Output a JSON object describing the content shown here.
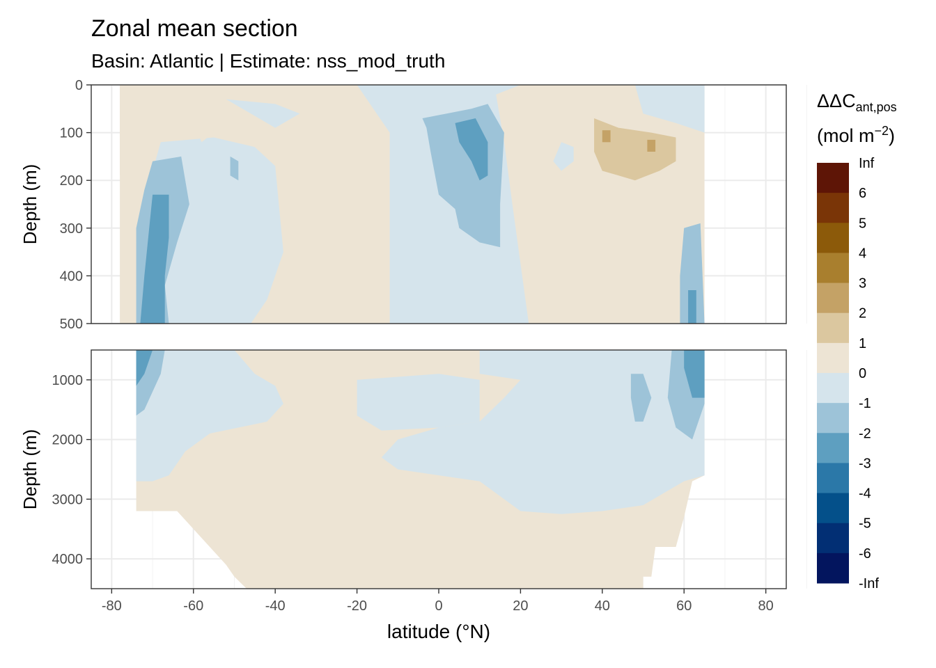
{
  "chart_data": {
    "type": "heatmap",
    "title": "Zonal mean section",
    "subtitle": "Basin: Atlantic | Estimate: nss_mod_truth",
    "xlabel": "latitude (°N)",
    "ylabel": "Depth (m)",
    "xlim": [
      -85,
      85
    ],
    "x_ticks": [
      -80,
      -60,
      -40,
      -20,
      0,
      20,
      40,
      60,
      80
    ],
    "x_tick_labels": [
      "-80",
      "-60",
      "-40",
      "-20",
      "0",
      "20",
      "40",
      "60",
      "80"
    ],
    "panels": [
      {
        "name": "upper",
        "ylim": [
          0,
          500
        ],
        "y_ticks": [
          0,
          100,
          200,
          300,
          400,
          500
        ],
        "y_tick_labels": [
          "0",
          "100",
          "200",
          "300",
          "400",
          "500"
        ],
        "ylabel": "Depth (m)"
      },
      {
        "name": "lower",
        "ylim": [
          500,
          4500
        ],
        "y_ticks": [
          1000,
          2000,
          3000,
          4000
        ],
        "y_tick_labels": [
          "1000",
          "2000",
          "3000",
          "4000"
        ],
        "ylabel": "Depth (m)"
      }
    ],
    "legend": {
      "title_main": "ΔΔC",
      "title_sub": "ant,pos",
      "unit_main": "(mol m",
      "unit_sup": "−2",
      "unit_close": ")",
      "breaks": [
        "Inf",
        "6",
        "5",
        "4",
        "3",
        "2",
        "1",
        "0",
        "-1",
        "-2",
        "-3",
        "-4",
        "-5",
        "-6",
        "-Inf"
      ],
      "colors": [
        "#5e1506",
        "#7a3507",
        "#8c5a0a",
        "#a97f2e",
        "#c4a266",
        "#dbc79f",
        "#ede4d4",
        "#d5e4ec",
        "#9dc3d8",
        "#5e9fc0",
        "#2b78a8",
        "#04508a",
        "#022f74",
        "#03155e"
      ],
      "position": "right"
    },
    "regions": [
      {
        "panel": "upper",
        "class": "1",
        "label": "0 to 1",
        "poly": [
          [
            -78,
            0
          ],
          [
            65,
            0
          ],
          [
            65,
            500
          ],
          [
            -78,
            500
          ]
        ]
      },
      {
        "panel": "upper",
        "class": "-1",
        "label": "-1 to 0",
        "poly": [
          [
            -46,
            0
          ],
          [
            -20,
            0
          ],
          [
            -12,
            100
          ],
          [
            -12,
            500
          ],
          [
            22,
            500
          ],
          [
            18,
            250
          ],
          [
            16,
            120
          ],
          [
            14,
            20
          ],
          [
            20,
            0
          ],
          [
            -46,
            0
          ]
        ]
      },
      {
        "panel": "upper",
        "class": "-1",
        "label": "-1 to 0",
        "poly": [
          [
            -68,
            120
          ],
          [
            -55,
            110
          ],
          [
            -45,
            130
          ],
          [
            -40,
            170
          ],
          [
            -38,
            350
          ],
          [
            -42,
            450
          ],
          [
            -46,
            500
          ],
          [
            -72,
            500
          ],
          [
            -74,
            300
          ]
        ]
      },
      {
        "panel": "upper",
        "class": "-1",
        "label": "-1 to 0",
        "poly": [
          [
            -52,
            30
          ],
          [
            -40,
            40
          ],
          [
            -34,
            60
          ],
          [
            -40,
            90
          ]
        ]
      },
      {
        "panel": "upper",
        "class": "-1",
        "label": "-1 to 0",
        "poly": [
          [
            -16,
            0
          ],
          [
            8,
            0
          ],
          [
            2,
            30
          ],
          [
            -10,
            40
          ]
        ]
      },
      {
        "panel": "upper",
        "class": "-1",
        "label": "-1 to 0",
        "poly": [
          [
            48,
            0
          ],
          [
            65,
            0
          ],
          [
            65,
            100
          ],
          [
            58,
            80
          ],
          [
            50,
            60
          ]
        ]
      },
      {
        "panel": "upper",
        "class": "-1",
        "label": "-1 to 0",
        "poly": [
          [
            30,
            120
          ],
          [
            33,
            130
          ],
          [
            33,
            160
          ],
          [
            30,
            180
          ],
          [
            28,
            160
          ]
        ]
      },
      {
        "panel": "upper",
        "class": "-2",
        "label": "-2 to -1",
        "poly": [
          [
            -70,
            160
          ],
          [
            -63,
            150
          ],
          [
            -61,
            250
          ],
          [
            -64,
            330
          ],
          [
            -67,
            420
          ],
          [
            -66,
            500
          ],
          [
            -74,
            500
          ],
          [
            -74,
            300
          ],
          [
            -72,
            220
          ]
        ]
      },
      {
        "panel": "upper",
        "class": "-2",
        "label": "-2 to -1",
        "poly": [
          [
            -4,
            70
          ],
          [
            8,
            50
          ],
          [
            12,
            40
          ],
          [
            16,
            100
          ],
          [
            15,
            250
          ],
          [
            15,
            340
          ],
          [
            10,
            330
          ],
          [
            5,
            300
          ],
          [
            4,
            260
          ],
          [
            0,
            230
          ],
          [
            -2,
            140
          ],
          [
            -3,
            90
          ]
        ]
      },
      {
        "panel": "upper",
        "class": "-2",
        "label": "-2 to -1",
        "poly": [
          [
            -51,
            150
          ],
          [
            -49,
            160
          ],
          [
            -49,
            200
          ],
          [
            -51,
            190
          ]
        ]
      },
      {
        "panel": "upper",
        "class": "-2",
        "label": "-2 to -1",
        "poly": [
          [
            60,
            300
          ],
          [
            64,
            290
          ],
          [
            65,
            500
          ],
          [
            59,
            500
          ],
          [
            59,
            400
          ]
        ]
      },
      {
        "panel": "upper",
        "class": "-3",
        "label": "-3 to -2",
        "poly": [
          [
            -70,
            230
          ],
          [
            -66,
            230
          ],
          [
            -66,
            320
          ],
          [
            -67,
            400
          ],
          [
            -67,
            500
          ],
          [
            -73,
            500
          ],
          [
            -72,
            400
          ]
        ]
      },
      {
        "panel": "upper",
        "class": "-3",
        "label": "-3 to -2",
        "poly": [
          [
            4,
            80
          ],
          [
            9,
            70
          ],
          [
            12,
            120
          ],
          [
            12,
            190
          ],
          [
            10,
            200
          ],
          [
            8,
            160
          ],
          [
            5,
            120
          ]
        ]
      },
      {
        "panel": "upper",
        "class": "-3",
        "label": "-3 to -2",
        "poly": [
          [
            61,
            430
          ],
          [
            63,
            430
          ],
          [
            63,
            500
          ],
          [
            61,
            500
          ]
        ]
      },
      {
        "panel": "upper",
        "class": "1",
        "label": "1 to 2",
        "poly": [
          [
            -78,
            0
          ],
          [
            -68,
            0
          ],
          [
            -68,
            70
          ],
          [
            -73,
            100
          ],
          [
            -76,
            180
          ],
          [
            -78,
            190
          ]
        ]
      },
      {
        "panel": "upper",
        "class": "1",
        "label": "1 to 2",
        "poly": [
          [
            -33,
            290
          ],
          [
            -29,
            290
          ],
          [
            -27,
            350
          ],
          [
            -28,
            420
          ],
          [
            -32,
            430
          ],
          [
            -34,
            360
          ]
        ]
      },
      {
        "panel": "upper",
        "class": "1",
        "label": "1 to 2",
        "poly": [
          [
            -59,
            50
          ],
          [
            -56,
            45
          ],
          [
            -55,
            100
          ],
          [
            -58,
            120
          ],
          [
            -59,
            100
          ]
        ]
      },
      {
        "panel": "upper",
        "class": "1",
        "label": "1 to 2",
        "poly": [
          [
            18,
            40
          ],
          [
            22,
            40
          ],
          [
            25,
            180
          ],
          [
            28,
            310
          ],
          [
            28,
            420
          ],
          [
            24,
            440
          ],
          [
            21,
            380
          ],
          [
            18,
            200
          ],
          [
            17,
            100
          ]
        ]
      },
      {
        "panel": "upper",
        "class": "1",
        "label": "1 to 2",
        "poly": [
          [
            34,
            0
          ],
          [
            48,
            0
          ],
          [
            50,
            70
          ],
          [
            58,
            90
          ],
          [
            62,
            110
          ],
          [
            62,
            220
          ],
          [
            58,
            280
          ],
          [
            52,
            300
          ],
          [
            47,
            350
          ],
          [
            46,
            500
          ],
          [
            42,
            500
          ],
          [
            42,
            360
          ],
          [
            40,
            230
          ],
          [
            36,
            200
          ],
          [
            34,
            140
          ],
          [
            34,
            60
          ]
        ]
      },
      {
        "panel": "upper",
        "class": "2",
        "label": "2 to 3",
        "poly": [
          [
            38,
            70
          ],
          [
            44,
            90
          ],
          [
            52,
            100
          ],
          [
            58,
            110
          ],
          [
            58,
            160
          ],
          [
            54,
            180
          ],
          [
            48,
            200
          ],
          [
            44,
            190
          ],
          [
            40,
            180
          ],
          [
            38,
            140
          ]
        ]
      },
      {
        "panel": "upper",
        "class": "3",
        "label": "3 to 4",
        "poly": [
          [
            51,
            115
          ],
          [
            53,
            115
          ],
          [
            53,
            140
          ],
          [
            51,
            140
          ]
        ]
      },
      {
        "panel": "upper",
        "class": "3",
        "label": "3 to 4",
        "poly": [
          [
            40,
            95
          ],
          [
            42,
            95
          ],
          [
            42,
            120
          ],
          [
            40,
            120
          ]
        ]
      },
      {
        "panel": "lower",
        "class": "1",
        "label": "0 to 1",
        "poly": [
          [
            -74,
            500
          ],
          [
            65,
            500
          ],
          [
            65,
            2600
          ],
          [
            62,
            2700
          ],
          [
            60,
            3300
          ],
          [
            58,
            3800
          ],
          [
            53,
            3800
          ],
          [
            52,
            4300
          ],
          [
            50,
            4300
          ],
          [
            50,
            4500
          ],
          [
            -47,
            4500
          ],
          [
            -50,
            4300
          ],
          [
            -52,
            4100
          ],
          [
            -56,
            3800
          ],
          [
            -60,
            3500
          ],
          [
            -64,
            3200
          ],
          [
            -67,
            3200
          ],
          [
            -74,
            3200
          ],
          [
            -74,
            2700
          ]
        ]
      },
      {
        "panel": "lower",
        "class": "-1",
        "label": "-1 to 0",
        "poly": [
          [
            -74,
            500
          ],
          [
            -50,
            500
          ],
          [
            -45,
            900
          ],
          [
            -40,
            1100
          ],
          [
            -38,
            1400
          ],
          [
            -42,
            1700
          ],
          [
            -56,
            1900
          ],
          [
            -62,
            2200
          ],
          [
            -66,
            2600
          ],
          [
            -70,
            2700
          ],
          [
            -74,
            2700
          ]
        ]
      },
      {
        "panel": "lower",
        "class": "-1",
        "label": "-1 to 0",
        "poly": [
          [
            -20,
            1000
          ],
          [
            0,
            900
          ],
          [
            10,
            1000
          ],
          [
            10,
            1700
          ],
          [
            0,
            1800
          ],
          [
            -14,
            1850
          ],
          [
            -20,
            1600
          ]
        ]
      },
      {
        "panel": "lower",
        "class": "-1",
        "label": "-1 to 0",
        "poly": [
          [
            10,
            500
          ],
          [
            65,
            500
          ],
          [
            65,
            2600
          ],
          [
            60,
            2700
          ],
          [
            55,
            2900
          ],
          [
            50,
            3100
          ],
          [
            40,
            3200
          ],
          [
            30,
            3250
          ],
          [
            20,
            3200
          ],
          [
            10,
            2700
          ],
          [
            0,
            2600
          ],
          [
            -10,
            2500
          ],
          [
            -14,
            2300
          ],
          [
            -10,
            2000
          ],
          [
            0,
            1800
          ],
          [
            10,
            1700
          ],
          [
            16,
            1300
          ],
          [
            20,
            1000
          ],
          [
            10,
            900
          ]
        ]
      },
      {
        "panel": "lower",
        "class": "-2",
        "label": "-2 to -1",
        "poly": [
          [
            -74,
            500
          ],
          [
            -67,
            500
          ],
          [
            -68,
            900
          ],
          [
            -72,
            1500
          ],
          [
            -74,
            1600
          ]
        ]
      },
      {
        "panel": "lower",
        "class": "-2",
        "label": "-2 to -1",
        "poly": [
          [
            57,
            500
          ],
          [
            65,
            500
          ],
          [
            65,
            1400
          ],
          [
            62,
            2000
          ],
          [
            58,
            1800
          ],
          [
            56,
            1300
          ]
        ]
      },
      {
        "panel": "lower",
        "class": "-2",
        "label": "-2 to -1",
        "poly": [
          [
            47,
            900
          ],
          [
            50,
            900
          ],
          [
            52,
            1300
          ],
          [
            50,
            1700
          ],
          [
            48,
            1700
          ],
          [
            47,
            1300
          ]
        ]
      },
      {
        "panel": "lower",
        "class": "-3",
        "label": "-3 to -2",
        "poly": [
          [
            60,
            500
          ],
          [
            65,
            500
          ],
          [
            65,
            1300
          ],
          [
            62,
            1300
          ],
          [
            60,
            800
          ]
        ]
      },
      {
        "panel": "lower",
        "class": "-3",
        "label": "-3 to -2",
        "poly": [
          [
            -74,
            500
          ],
          [
            -70,
            500
          ],
          [
            -72,
            900
          ],
          [
            -74,
            1100
          ]
        ]
      }
    ]
  }
}
